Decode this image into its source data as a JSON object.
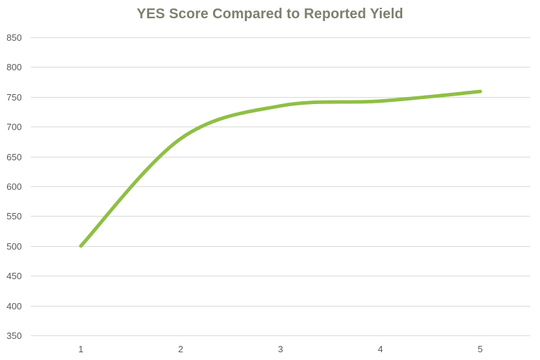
{
  "chart_data": {
    "type": "line",
    "title": "YES Score Compared to Reported Yield",
    "xlabel": "",
    "ylabel": "",
    "categories": [
      "1",
      "2",
      "3",
      "4",
      "5"
    ],
    "series": [
      {
        "values": [
          500,
          680,
          735,
          743,
          759
        ]
      }
    ],
    "ylim": [
      350,
      850
    ],
    "yticks": [
      "350",
      "400",
      "450",
      "500",
      "550",
      "600",
      "650",
      "700",
      "750",
      "800",
      "850"
    ],
    "grid": true,
    "legend": "none",
    "smooth": true,
    "line_color": "#8fbf45"
  }
}
